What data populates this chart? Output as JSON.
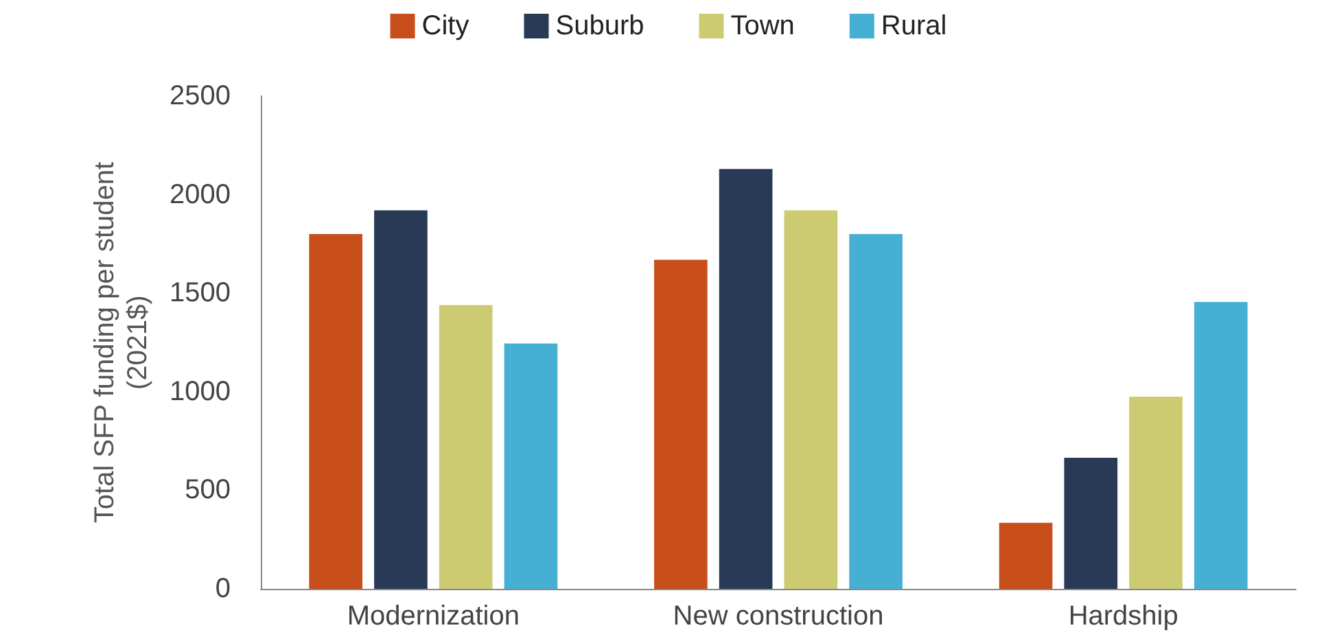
{
  "chart_data": {
    "type": "bar",
    "ylabel": "Total SFP funding per student\n(2021$)",
    "categories": [
      "Modernization",
      "New construction",
      "Hardship"
    ],
    "series": [
      {
        "name": "City",
        "color": "#c84f1b",
        "values": [
          1800,
          1670,
          335
        ]
      },
      {
        "name": "Suburb",
        "color": "#283a55",
        "values": [
          1920,
          2130,
          665
        ]
      },
      {
        "name": "Town",
        "color": "#cdcb72",
        "values": [
          1440,
          1920,
          975
        ]
      },
      {
        "name": "Rural",
        "color": "#45b0d3",
        "values": [
          1245,
          1800,
          1455
        ]
      }
    ],
    "ylim": [
      0,
      2500
    ],
    "yticks": [
      0,
      500,
      1000,
      1500,
      2000,
      2500
    ],
    "grid": false,
    "legend": "top"
  }
}
